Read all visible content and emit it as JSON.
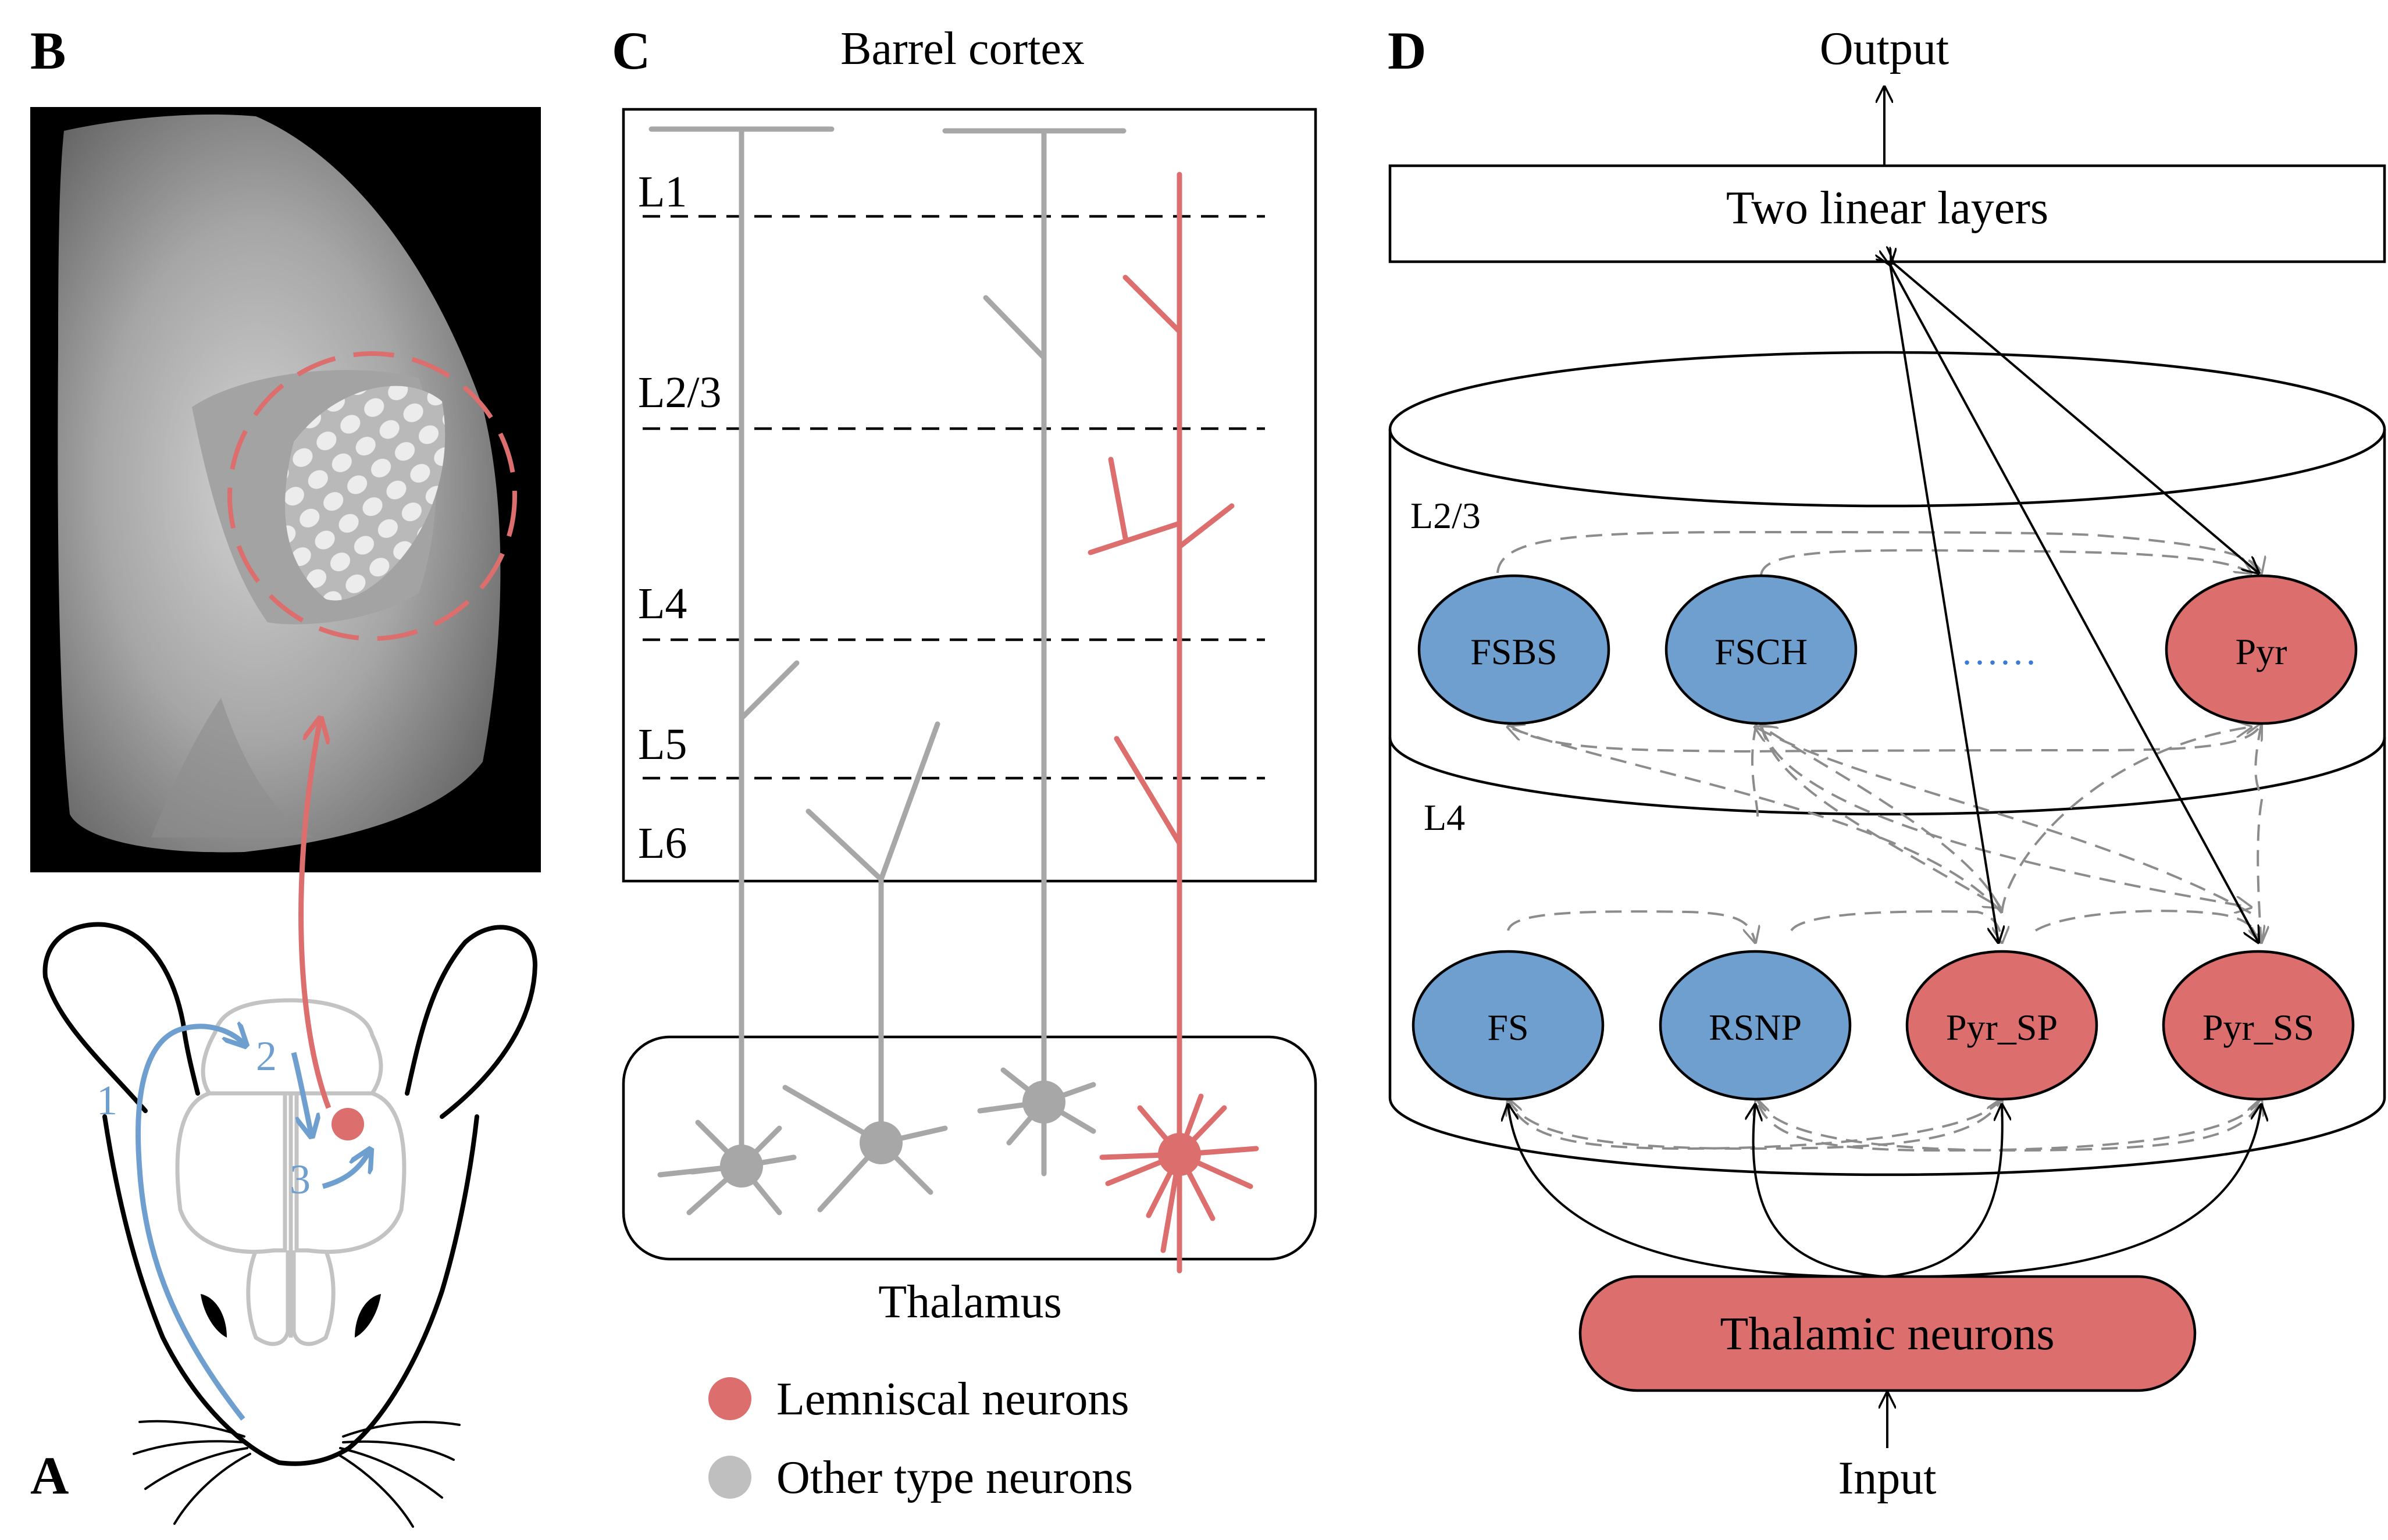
{
  "colors": {
    "lemniscal": "#dc6e6e",
    "other": "#a7a7a7",
    "blue": "#6f9fcf",
    "black": "#000000"
  },
  "panels": {
    "A": {
      "label": "A",
      "path_labels": [
        "1",
        "2",
        "3"
      ]
    },
    "B": {
      "label": "B"
    },
    "C": {
      "label": "C",
      "title": "Barrel cortex",
      "layers": [
        "L1",
        "L2/3",
        "L4",
        "L5",
        "L6"
      ],
      "thalamus_label": "Thalamus",
      "legend": [
        {
          "label": "Lemniscal neurons",
          "color": "#dc6e6e"
        },
        {
          "label": "Other type neurons",
          "color": "#bfbfbf"
        }
      ]
    },
    "D": {
      "label": "D",
      "output_label": "Output",
      "linear_layers_label": "Two linear layers",
      "layer_l23_label": "L2/3",
      "layer_l4_label": "L4",
      "l23_neurons": [
        {
          "label": "FSBS",
          "type": "blue"
        },
        {
          "label": "FSCH",
          "type": "blue"
        },
        {
          "label": "Pyr",
          "type": "red"
        }
      ],
      "ellipsis": "......",
      "l4_neurons": [
        {
          "label": "FS",
          "type": "blue"
        },
        {
          "label": "RSNP",
          "type": "blue"
        },
        {
          "label": "Pyr_SP",
          "type": "red"
        },
        {
          "label": "Pyr_SS",
          "type": "red"
        }
      ],
      "thalamic_label": "Thalamic neurons",
      "input_label": "Input"
    }
  }
}
